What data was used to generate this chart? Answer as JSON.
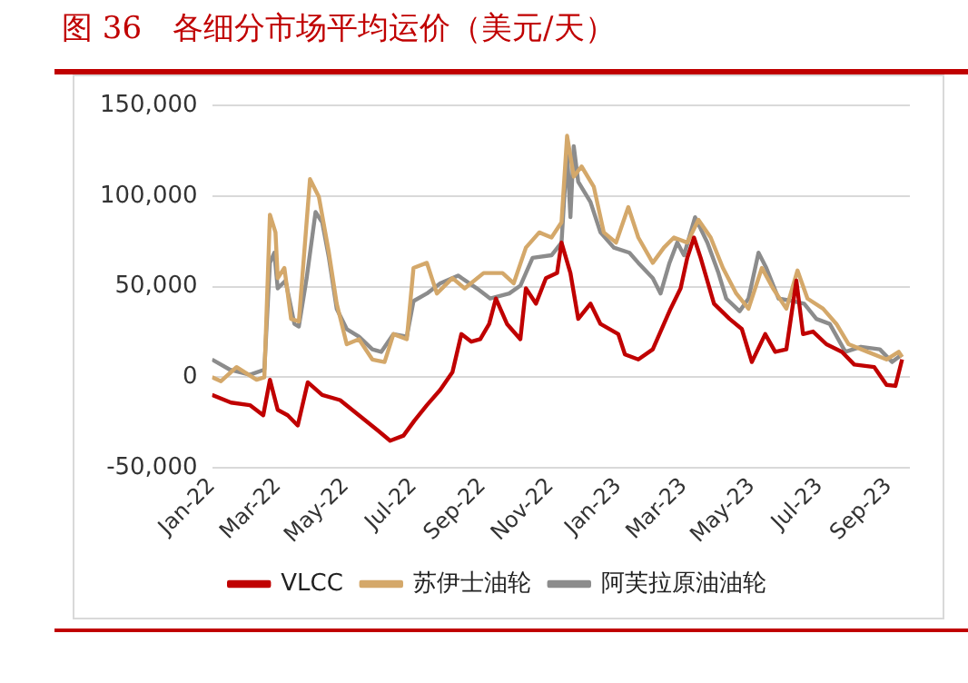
{
  "chart_data": {
    "type": "line",
    "title": "图 36　各细分市场平均运价（美元/天）",
    "legend": "bottom",
    "grid": "y",
    "line_style": "solid",
    "marker": "none",
    "xlim": [
      "2022-01-01",
      "2023-09-20"
    ],
    "xticks": [
      {
        "value": "2022-01",
        "label": "Jan-22"
      },
      {
        "value": "2022-03",
        "label": "Mar-22"
      },
      {
        "value": "2022-05",
        "label": "May-22"
      },
      {
        "value": "2022-07",
        "label": "Jul-22"
      },
      {
        "value": "2022-09",
        "label": "Sep-22"
      },
      {
        "value": "2022-11",
        "label": "Nov-22"
      },
      {
        "value": "2023-01",
        "label": "Jan-23"
      },
      {
        "value": "2023-03",
        "label": "Mar-23"
      },
      {
        "value": "2023-05",
        "label": "May-23"
      },
      {
        "value": "2023-07",
        "label": "Jul-23"
      },
      {
        "value": "2023-09",
        "label": "Sep-23"
      }
    ],
    "ylim": [
      -50000,
      150000
    ],
    "yticks": [
      {
        "value": -50000,
        "label": "-50,000"
      },
      0,
      {
        "value": 50000,
        "label": "50,000"
      },
      {
        "value": 100000,
        "label": "100,000"
      },
      {
        "value": 150000,
        "label": "150,000"
      }
    ],
    "series": [
      {
        "name": "VLCC",
        "color": "#c00000",
        "x": [
          "2022-01-01",
          "2022-01-18",
          "2022-02-04",
          "2022-02-16",
          "2022-02-22",
          "2022-03-01",
          "2022-03-10",
          "2022-03-19",
          "2022-03-28",
          "2022-04-10",
          "2022-04-26",
          "2022-05-13",
          "2022-05-30",
          "2022-06-10",
          "2022-06-22",
          "2022-07-02",
          "2022-07-13",
          "2022-07-25",
          "2022-08-05",
          "2022-08-13",
          "2022-08-22",
          "2022-08-30",
          "2022-09-07",
          "2022-09-13",
          "2022-09-23",
          "2022-10-05",
          "2022-10-10",
          "2022-10-19",
          "2022-10-28",
          "2022-11-07",
          "2022-11-11",
          "2022-11-19",
          "2022-11-26",
          "2022-12-07",
          "2022-12-16",
          "2023-01-01",
          "2023-01-07",
          "2023-01-19",
          "2023-02-01",
          "2023-02-11",
          "2023-02-17",
          "2023-02-26",
          "2023-03-04",
          "2023-03-10",
          "2023-03-16",
          "2023-03-28",
          "2023-04-11",
          "2023-04-22",
          "2023-05-01",
          "2023-05-13",
          "2023-05-22",
          "2023-06-01",
          "2023-06-10",
          "2023-06-16",
          "2023-06-25",
          "2023-07-07",
          "2023-07-21",
          "2023-08-01",
          "2023-08-19",
          "2023-08-30",
          "2023-09-07",
          "2023-09-13"
        ],
        "values": [
          -9800,
          -14000,
          -15400,
          -21000,
          -1400,
          -18000,
          -21000,
          -26600,
          -2800,
          -9800,
          -12600,
          -21000,
          -29400,
          -35000,
          -32200,
          -23800,
          -15400,
          -7000,
          2800,
          23800,
          19600,
          21000,
          29400,
          43400,
          29400,
          21000,
          49000,
          40600,
          54700,
          57500,
          74300,
          57500,
          32200,
          40600,
          29400,
          23800,
          12600,
          9800,
          15400,
          29400,
          37800,
          49000,
          65900,
          77100,
          65900,
          40600,
          32200,
          26600,
          8400,
          23800,
          14000,
          15400,
          53300,
          23800,
          25200,
          18200,
          14000,
          7000,
          5600,
          -4200,
          -4800,
          9800
        ]
      },
      {
        "name": "苏伊士油轮",
        "color": "#d4a86a",
        "x": [
          "2022-01-01",
          "2022-01-09",
          "2022-01-23",
          "2022-02-10",
          "2022-02-17",
          "2022-02-22",
          "2022-02-27",
          "2022-03-01",
          "2022-03-07",
          "2022-03-13",
          "2022-03-20",
          "2022-03-30",
          "2022-04-07",
          "2022-04-16",
          "2022-04-23",
          "2022-05-02",
          "2022-05-13",
          "2022-05-25",
          "2022-06-05",
          "2022-06-13",
          "2022-06-25",
          "2022-07-01",
          "2022-07-13",
          "2022-07-22",
          "2022-08-05",
          "2022-08-16",
          "2022-09-02",
          "2022-09-19",
          "2022-09-29",
          "2022-10-10",
          "2022-10-22",
          "2022-11-02",
          "2022-11-11",
          "2022-11-16",
          "2022-11-22",
          "2022-11-29",
          "2022-12-10",
          "2022-12-19",
          "2022-12-30",
          "2023-01-10",
          "2023-01-19",
          "2023-02-01",
          "2023-02-11",
          "2023-02-20",
          "2023-03-04",
          "2023-03-14",
          "2023-03-25",
          "2023-04-05",
          "2023-04-17",
          "2023-04-28",
          "2023-05-10",
          "2023-05-20",
          "2023-06-01",
          "2023-06-11",
          "2023-06-20",
          "2023-07-04",
          "2023-07-16",
          "2023-07-27",
          "2023-08-13",
          "2023-08-30",
          "2023-09-10",
          "2023-09-13"
        ],
        "values": [
          0,
          -2200,
          5600,
          -1400,
          0,
          89700,
          79900,
          54700,
          60300,
          32200,
          30800,
          109300,
          99500,
          68700,
          40600,
          18200,
          21000,
          9800,
          8400,
          23800,
          21000,
          60300,
          63100,
          46200,
          54700,
          49000,
          57500,
          57500,
          51800,
          71500,
          79900,
          77100,
          85500,
          133200,
          110700,
          116300,
          105100,
          79900,
          74300,
          93900,
          77100,
          63100,
          71500,
          77100,
          74300,
          86900,
          77100,
          60300,
          46200,
          37800,
          60300,
          49000,
          37800,
          58900,
          43400,
          37800,
          29400,
          18200,
          14000,
          9800,
          14000,
          11200
        ]
      },
      {
        "name": "阿芙拉原油油轮",
        "color": "#8c8c8c",
        "x": [
          "2022-01-01",
          "2022-01-17",
          "2022-02-04",
          "2022-02-17",
          "2022-02-22",
          "2022-02-26",
          "2022-03-01",
          "2022-03-08",
          "2022-03-16",
          "2022-03-20",
          "2022-03-27",
          "2022-04-04",
          "2022-04-10",
          "2022-04-16",
          "2022-04-23",
          "2022-05-02",
          "2022-05-13",
          "2022-05-25",
          "2022-06-02",
          "2022-06-13",
          "2022-06-25",
          "2022-07-01",
          "2022-07-13",
          "2022-07-25",
          "2022-08-10",
          "2022-08-27",
          "2022-09-08",
          "2022-09-25",
          "2022-10-05",
          "2022-10-16",
          "2022-11-02",
          "2022-11-11",
          "2022-11-16",
          "2022-11-19",
          "2022-11-22",
          "2022-11-26",
          "2022-12-07",
          "2022-12-16",
          "2022-12-28",
          "2023-01-11",
          "2023-01-19",
          "2023-02-01",
          "2023-02-08",
          "2023-02-16",
          "2023-02-23",
          "2023-03-01",
          "2023-03-11",
          "2023-03-22",
          "2023-04-01",
          "2023-04-08",
          "2023-04-20",
          "2023-04-28",
          "2023-05-07",
          "2023-05-14",
          "2023-05-25",
          "2023-06-07",
          "2023-06-17",
          "2023-06-28",
          "2023-07-10",
          "2023-07-24",
          "2023-08-07",
          "2023-08-24",
          "2023-09-04",
          "2023-09-13"
        ],
        "values": [
          9800,
          4200,
          1400,
          4200,
          63100,
          68700,
          49000,
          53300,
          29400,
          28000,
          54700,
          91100,
          85500,
          65900,
          37800,
          26600,
          22400,
          15400,
          14000,
          23800,
          22400,
          42000,
          46200,
          51800,
          56100,
          49000,
          43400,
          46200,
          50500,
          65900,
          67300,
          74300,
          124700,
          88300,
          127500,
          107900,
          96700,
          79900,
          71500,
          68700,
          63100,
          54700,
          46200,
          63100,
          74300,
          67300,
          88300,
          74300,
          57500,
          43400,
          36400,
          43400,
          68700,
          60300,
          43400,
          42000,
          40600,
          32200,
          29400,
          14000,
          16800,
          15400,
          8400,
          12600
        ]
      }
    ]
  }
}
